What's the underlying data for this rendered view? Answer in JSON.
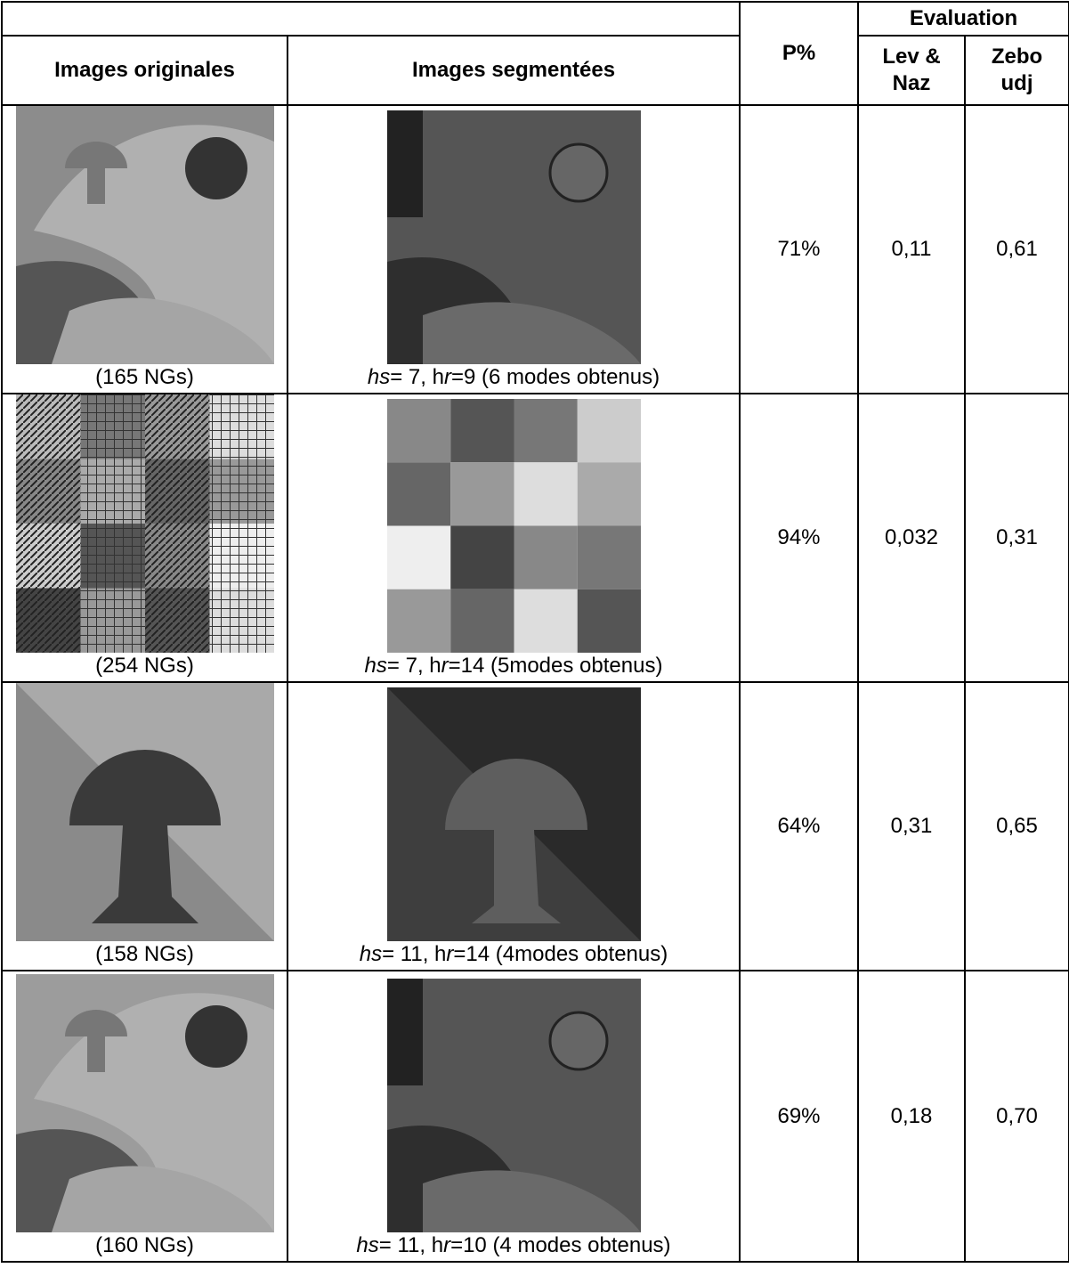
{
  "header": {
    "evaluation": "Evaluation",
    "columns": [
      "Images originales",
      "Images segmentées",
      "P%"
    ],
    "lev_naz": [
      "Lev &",
      "Naz"
    ],
    "zeboudj": [
      "Zebo",
      "udj"
    ]
  },
  "rows": [
    {
      "original_caption": "(165 NGs)",
      "params": [
        "hs",
        "= 7, h",
        "r",
        "=9 (6 modes obtenus)"
      ],
      "p": "71%",
      "lev_naz": "0,11",
      "zeboudj": "0,61"
    },
    {
      "original_caption": "(254 NGs)",
      "params": [
        "hs",
        "= 7, h",
        "r",
        "=14 (5modes obtenus)"
      ],
      "p": "94%",
      "lev_naz": "0,032",
      "zeboudj": "0,31"
    },
    {
      "original_caption": "(158 NGs)",
      "params": [
        "hs",
        "= 11, h",
        "r",
        "=14 (4modes obtenus)"
      ],
      "p": "64%",
      "lev_naz": "0,31",
      "zeboudj": "0,65"
    },
    {
      "original_caption": "(160 NGs)",
      "params": [
        "hs",
        "= 11, h",
        "r",
        "=10 (4 modes obtenus)"
      ],
      "p": "69%",
      "lev_naz": "0,18",
      "zeboudj": "0,70"
    }
  ]
}
